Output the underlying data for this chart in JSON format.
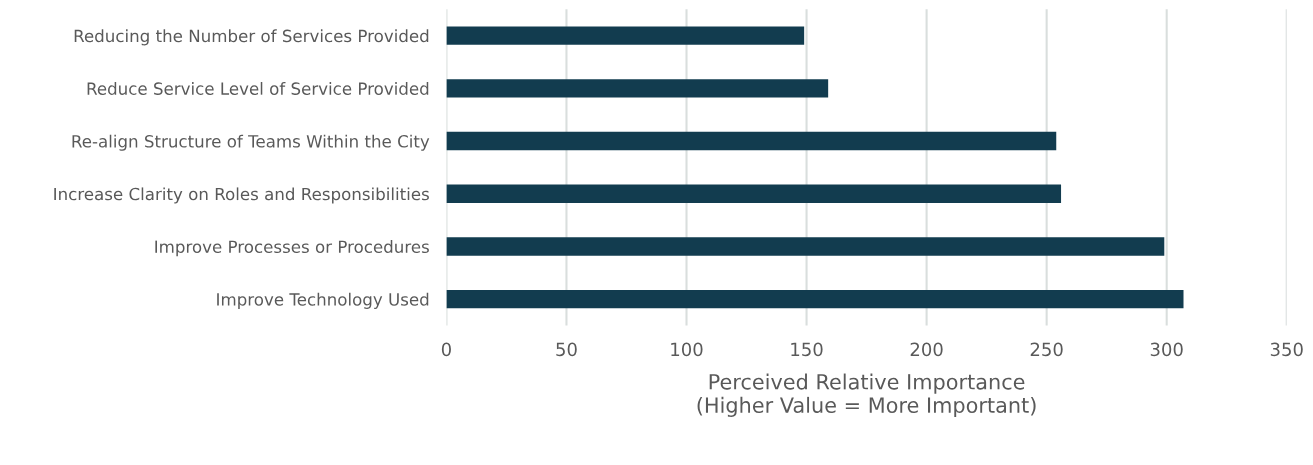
{
  "chart_data": {
    "type": "bar",
    "orientation": "horizontal",
    "categories": [
      "Reducing the Number of Services Provided",
      "Reduce Service Level of Service Provided",
      "Re-align Structure of Teams Within the City",
      "Increase Clarity on Roles and Responsibilities",
      "Improve Processes or Procedures",
      "Improve Technology Used"
    ],
    "values": [
      149,
      159,
      254,
      256,
      299,
      307
    ],
    "color": "#123c4f",
    "xlabel": "Perceived Relative Importance\n(Higher Value = More Important)",
    "xlim": [
      0,
      350
    ],
    "xticks": [
      0,
      50,
      100,
      150,
      200,
      250,
      300,
      350
    ],
    "grid": "x"
  }
}
